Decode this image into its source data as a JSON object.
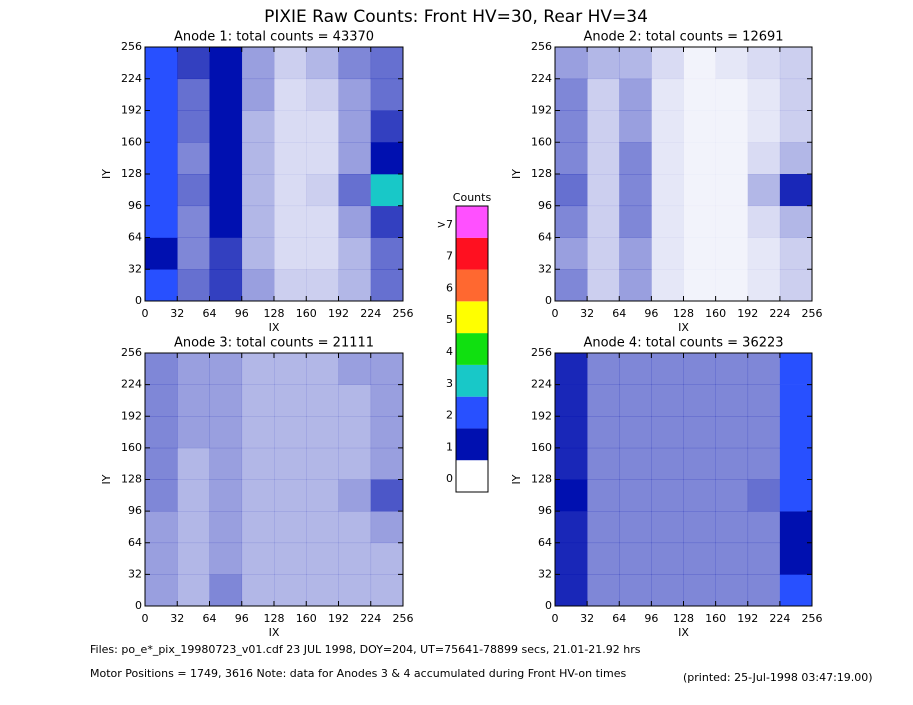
{
  "title": "PIXIE Raw Counts:  Front HV=30, Rear HV=34",
  "chart_data": [
    {
      "type": "heatmap",
      "title": "Anode 1: total counts = 43370",
      "xlabel": "IX",
      "ylabel": "IY",
      "xlim": [
        0,
        256
      ],
      "ylim": [
        0,
        256
      ],
      "xticks": [
        0,
        32,
        64,
        96,
        128,
        160,
        192,
        224,
        256
      ],
      "yticks": [
        0,
        32,
        64,
        96,
        128,
        160,
        192,
        224,
        256
      ],
      "z": [
        [
          1.5,
          0.6,
          0.8,
          0.4,
          0.2,
          0.2,
          0.3,
          0.6
        ],
        [
          1.2,
          0.5,
          0.8,
          0.3,
          0.15,
          0.15,
          0.3,
          0.6
        ],
        [
          1.5,
          0.5,
          1.0,
          0.3,
          0.15,
          0.15,
          0.4,
          0.8
        ],
        [
          1.8,
          0.6,
          1.2,
          0.3,
          0.15,
          0.2,
          0.6,
          2.5
        ],
        [
          1.5,
          0.5,
          1.2,
          0.3,
          0.15,
          0.15,
          0.4,
          1.0
        ],
        [
          1.8,
          0.6,
          1.2,
          0.3,
          0.15,
          0.15,
          0.4,
          0.8
        ],
        [
          1.5,
          0.6,
          1.2,
          0.4,
          0.15,
          0.2,
          0.4,
          0.6
        ],
        [
          1.5,
          0.8,
          1.2,
          0.4,
          0.2,
          0.3,
          0.5,
          0.6
        ]
      ]
    },
    {
      "type": "heatmap",
      "title": "Anode 2: total counts = 12691",
      "xlabel": "IX",
      "ylabel": "IY",
      "xlim": [
        0,
        256
      ],
      "ylim": [
        0,
        256
      ],
      "xticks": [
        0,
        32,
        64,
        96,
        128,
        160,
        192,
        224,
        256
      ],
      "yticks": [
        0,
        32,
        64,
        96,
        128,
        160,
        192,
        224,
        256
      ],
      "z": [
        [
          0.5,
          0.2,
          0.4,
          0.1,
          0.05,
          0.05,
          0.1,
          0.2
        ],
        [
          0.4,
          0.2,
          0.4,
          0.1,
          0.05,
          0.05,
          0.1,
          0.2
        ],
        [
          0.5,
          0.2,
          0.5,
          0.1,
          0.05,
          0.05,
          0.15,
          0.3
        ],
        [
          0.6,
          0.2,
          0.5,
          0.1,
          0.05,
          0.05,
          0.3,
          0.9
        ],
        [
          0.5,
          0.2,
          0.5,
          0.1,
          0.05,
          0.05,
          0.15,
          0.3
        ],
        [
          0.5,
          0.2,
          0.4,
          0.1,
          0.05,
          0.05,
          0.1,
          0.2
        ],
        [
          0.5,
          0.2,
          0.4,
          0.1,
          0.05,
          0.05,
          0.1,
          0.2
        ],
        [
          0.4,
          0.3,
          0.3,
          0.15,
          0.05,
          0.1,
          0.15,
          0.2
        ]
      ]
    },
    {
      "type": "heatmap",
      "title": "Anode 3: total counts = 21111",
      "xlabel": "IX",
      "ylabel": "IY",
      "xlim": [
        0,
        256
      ],
      "ylim": [
        0,
        256
      ],
      "xticks": [
        0,
        32,
        64,
        96,
        128,
        160,
        192,
        224,
        256
      ],
      "yticks": [
        0,
        32,
        64,
        96,
        128,
        160,
        192,
        224,
        256
      ],
      "z": [
        [
          0.4,
          0.3,
          0.5,
          0.3,
          0.3,
          0.3,
          0.3,
          0.3
        ],
        [
          0.4,
          0.3,
          0.4,
          0.3,
          0.3,
          0.3,
          0.3,
          0.3
        ],
        [
          0.4,
          0.3,
          0.4,
          0.3,
          0.3,
          0.3,
          0.3,
          0.4
        ],
        [
          0.5,
          0.3,
          0.4,
          0.3,
          0.3,
          0.3,
          0.4,
          0.7
        ],
        [
          0.5,
          0.3,
          0.4,
          0.3,
          0.3,
          0.3,
          0.3,
          0.4
        ],
        [
          0.5,
          0.4,
          0.4,
          0.3,
          0.3,
          0.3,
          0.3,
          0.4
        ],
        [
          0.5,
          0.4,
          0.4,
          0.3,
          0.3,
          0.3,
          0.3,
          0.4
        ],
        [
          0.5,
          0.4,
          0.4,
          0.3,
          0.3,
          0.3,
          0.4,
          0.4
        ]
      ]
    },
    {
      "type": "heatmap",
      "title": "Anode 4: total counts = 36223",
      "xlabel": "IX",
      "ylabel": "IY",
      "xlim": [
        0,
        256
      ],
      "ylim": [
        0,
        256
      ],
      "xticks": [
        0,
        32,
        64,
        96,
        128,
        160,
        192,
        224,
        256
      ],
      "yticks": [
        0,
        32,
        64,
        96,
        128,
        160,
        192,
        224,
        256
      ],
      "z": [
        [
          0.9,
          0.5,
          0.5,
          0.5,
          0.5,
          0.5,
          0.5,
          1.5
        ],
        [
          0.9,
          0.5,
          0.5,
          0.5,
          0.5,
          0.5,
          0.5,
          1.4
        ],
        [
          0.9,
          0.5,
          0.5,
          0.5,
          0.5,
          0.5,
          0.5,
          1.4
        ],
        [
          1.0,
          0.5,
          0.5,
          0.5,
          0.5,
          0.5,
          0.6,
          1.6
        ],
        [
          0.9,
          0.5,
          0.5,
          0.5,
          0.5,
          0.5,
          0.5,
          1.5
        ],
        [
          0.9,
          0.5,
          0.5,
          0.5,
          0.5,
          0.5,
          0.5,
          1.5
        ],
        [
          0.9,
          0.5,
          0.5,
          0.5,
          0.5,
          0.5,
          0.5,
          1.8
        ],
        [
          0.9,
          0.5,
          0.5,
          0.5,
          0.5,
          0.5,
          0.5,
          1.5
        ]
      ]
    }
  ],
  "colorbar": {
    "title": "Counts",
    "levels": [
      0,
      1,
      2,
      3,
      4,
      5,
      6,
      7,
      {
        "value": 8,
        "label": ">7"
      }
    ],
    "colors": [
      "#ffffff",
      "#0010b0",
      "#2850ff",
      "#18c8c8",
      "#10e010",
      "#ffff00",
      "#ff6830",
      "#ff1020",
      "#ff50ff"
    ]
  },
  "footer": {
    "files": "Files: po_e*_pix_19980723_v01.cdf    23 JUL 1998, DOY=204, UT=75641-78899 secs, 21.01-21.92 hrs",
    "motor": "Motor Positions = 1749, 3616   Note: data for Anodes 3 & 4 accumulated during Front HV-on times",
    "printed": "(printed: 25-Jul-1998 03:47:19.00)"
  }
}
